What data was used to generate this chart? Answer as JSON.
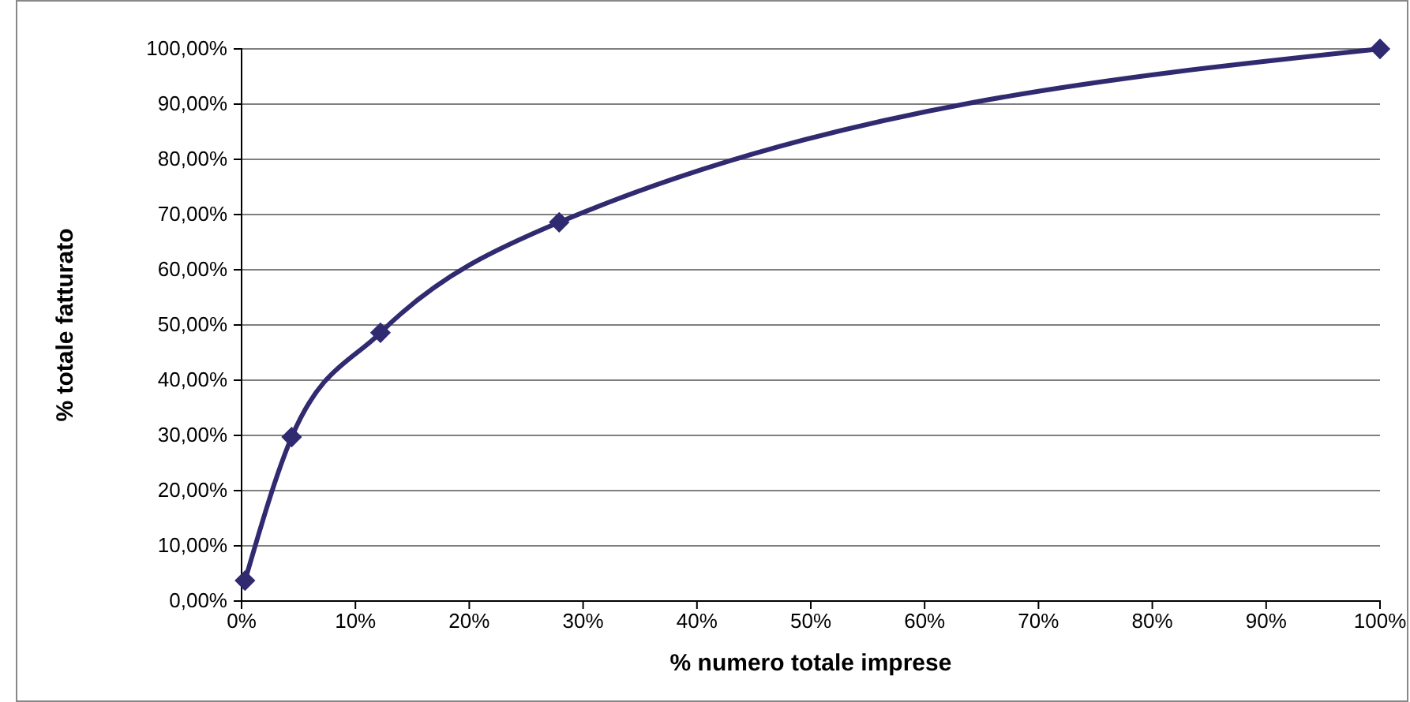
{
  "chart_data": {
    "type": "line",
    "xlabel": "% numero totale imprese",
    "ylabel": "% totale fatturato",
    "x": [
      0.3,
      4.4,
      12.2,
      27.9,
      100
    ],
    "series": [
      {
        "color": "#302a70",
        "values": [
          3.7,
          29.7,
          48.6,
          68.6,
          100
        ]
      }
    ],
    "xlim": [
      0,
      100
    ],
    "ylim": [
      0,
      100
    ],
    "xticks": [
      {
        "value": 0,
        "label": "0%"
      },
      {
        "value": 10,
        "label": "10%"
      },
      {
        "value": 20,
        "label": "20%"
      },
      {
        "value": 30,
        "label": "30%"
      },
      {
        "value": 40,
        "label": "40%"
      },
      {
        "value": 50,
        "label": "50%"
      },
      {
        "value": 60,
        "label": "60%"
      },
      {
        "value": 70,
        "label": "70%"
      },
      {
        "value": 80,
        "label": "80%"
      },
      {
        "value": 90,
        "label": "90%"
      },
      {
        "value": 100,
        "label": "100%"
      }
    ],
    "yticks": [
      {
        "value": 0,
        "label": "0,00%"
      },
      {
        "value": 10,
        "label": "10,00%"
      },
      {
        "value": 20,
        "label": "20,00%"
      },
      {
        "value": 30,
        "label": "30,00%"
      },
      {
        "value": 40,
        "label": "40,00%"
      },
      {
        "value": 50,
        "label": "50,00%"
      },
      {
        "value": 60,
        "label": "60,00%"
      },
      {
        "value": 70,
        "label": "70,00%"
      },
      {
        "value": 80,
        "label": "80,00%"
      },
      {
        "value": 90,
        "label": "90,00%"
      },
      {
        "value": 100,
        "label": "100,00%"
      }
    ],
    "grid": "y",
    "marker": "diamond",
    "line_style": "solid"
  }
}
